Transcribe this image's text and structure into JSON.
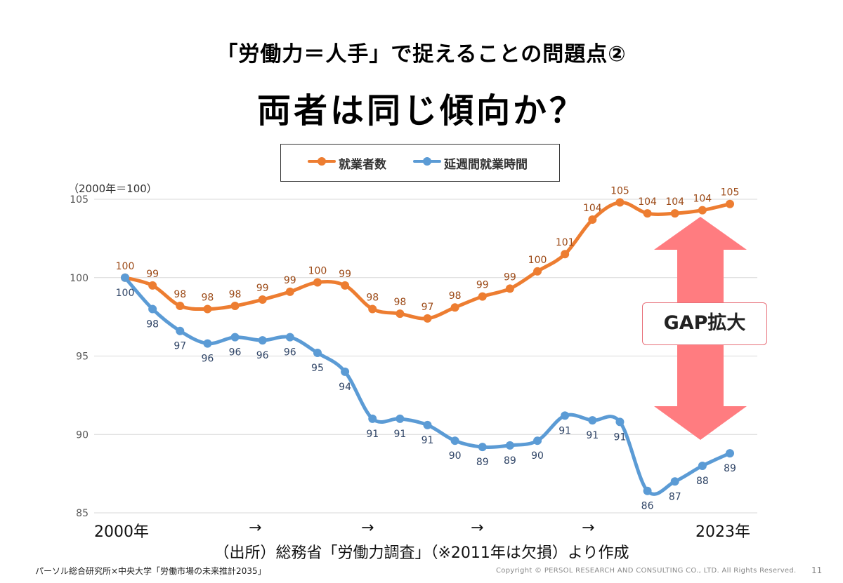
{
  "header": {
    "subtitle": "「労働力＝人手」で捉えることの問題点②",
    "title": "両者は同じ傾向か？"
  },
  "callout": {
    "label": "GAP拡大"
  },
  "source_note": "（出所）総務省「労働力調査」（※2011年は欠損）より作成",
  "footer": {
    "left": "パーソル総合研究所×中央大学「労働市場の未来推計2035」",
    "copyright": "Copyright © PERSOL RESEARCH AND CONSULTING CO., LTD. All Rights Reserved.",
    "page": "11"
  },
  "colors": {
    "orange": "#ED7D31",
    "blue": "#5B9BD5",
    "arrow": "#FF7C80"
  },
  "chart_data": {
    "type": "line",
    "ylabel": "（2000年＝100）",
    "ylim": [
      85,
      105
    ],
    "yticks": [
      85,
      90,
      95,
      100,
      105
    ],
    "grid": true,
    "legend_position": "top",
    "x": [
      "2000",
      "2001",
      "2002",
      "2003",
      "2004",
      "2005",
      "2006",
      "2007",
      "2008",
      "2009",
      "2010",
      "2012",
      "2013",
      "2014",
      "2015",
      "2016",
      "2017",
      "2018",
      "2019",
      "2020",
      "2021",
      "2022",
      "2023"
    ],
    "x_axis_labels": [
      "2000年",
      "→",
      "→",
      "→",
      "→",
      "2023年"
    ],
    "series": [
      {
        "name": "就業者数",
        "color": "#ED7D31",
        "values": [
          100.0,
          99.5,
          98.2,
          98.0,
          98.2,
          98.6,
          99.1,
          99.7,
          99.5,
          98.0,
          97.7,
          97.4,
          98.1,
          98.8,
          99.3,
          100.4,
          101.5,
          103.7,
          104.8,
          104.1,
          104.1,
          104.3,
          104.7
        ],
        "labels": [
          "100",
          "99",
          "98",
          "98",
          "98",
          "99",
          "99",
          "100",
          "99",
          "98",
          "98",
          "97",
          "98",
          "99",
          "99",
          "100",
          "101",
          "104",
          "105",
          "104",
          "104",
          "104",
          "105"
        ]
      },
      {
        "name": "延週間就業時間",
        "color": "#5B9BD5",
        "values": [
          100.0,
          98.0,
          96.6,
          95.8,
          96.2,
          96.0,
          96.2,
          95.2,
          94.0,
          91.0,
          91.0,
          90.6,
          89.6,
          89.2,
          89.3,
          89.6,
          91.2,
          90.9,
          90.8,
          86.4,
          87.0,
          88.0,
          88.8
        ],
        "labels": [
          "100",
          "98",
          "97",
          "96",
          "96",
          "96",
          "96",
          "95",
          "94",
          "91",
          "91",
          "91",
          "90",
          "89",
          "89",
          "90",
          "91",
          "91",
          "91",
          "86",
          "87",
          "88",
          "89"
        ]
      }
    ]
  }
}
